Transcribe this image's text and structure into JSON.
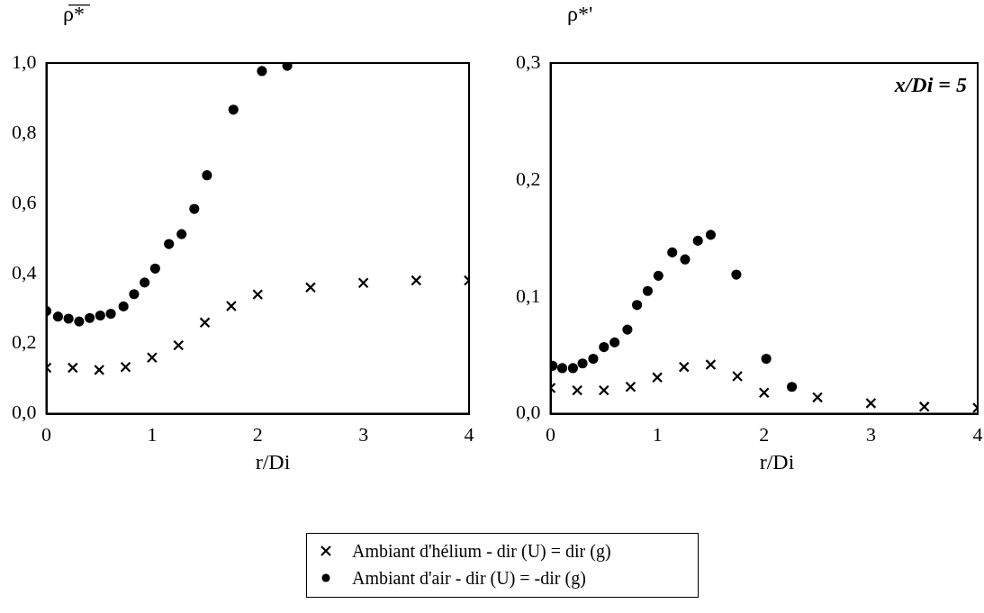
{
  "chart_data": [
    {
      "type": "scatter",
      "ylabel": "ρ̅*̅",
      "xlabel": "r/Di",
      "xlim": [
        0,
        4
      ],
      "xticks": [
        0,
        1,
        2,
        3,
        4
      ],
      "ylim": [
        0,
        1
      ],
      "yticks": [
        {
          "value": 0,
          "label": "0,0"
        },
        {
          "value": 0.2,
          "label": "0,2"
        },
        {
          "value": 0.4,
          "label": "0,4"
        },
        {
          "value": 0.6,
          "label": "0,6"
        },
        {
          "value": 0.8,
          "label": "0,8"
        },
        {
          "value": 1,
          "label": "1,0"
        }
      ],
      "grid": false,
      "legend": "bottom",
      "series": [
        {
          "name": "Ambiant d'hélium - dir (U) = dir (g)",
          "color": "#000000",
          "marker": "cross",
          "x": [
            0,
            0.25,
            0.5,
            0.75,
            1,
            1.25,
            1.5,
            1.75,
            2,
            2.5,
            3,
            3.5,
            4
          ],
          "values": [
            0.131,
            0.131,
            0.125,
            0.133,
            0.16,
            0.195,
            0.26,
            0.307,
            0.34,
            0.36,
            0.373,
            0.38,
            0.38
          ]
        },
        {
          "name": "Ambiant d'air - dir (U) = -dir (g)",
          "color": "#000000",
          "marker": "circle",
          "x": [
            0,
            0.11,
            0.21,
            0.31,
            0.41,
            0.51,
            0.61,
            0.73,
            0.83,
            0.93,
            1.03,
            1.16,
            1.28,
            1.4,
            1.52,
            1.77,
            2.04,
            2.28
          ],
          "values": [
            0.293,
            0.277,
            0.271,
            0.263,
            0.273,
            0.28,
            0.285,
            0.306,
            0.341,
            0.374,
            0.414,
            0.484,
            0.512,
            0.584,
            0.68,
            0.867,
            0.977,
            0.992
          ]
        }
      ]
    },
    {
      "type": "scatter",
      "ylabel": "ρ*'",
      "xlabel": "r/Di",
      "xlim": [
        0,
        4
      ],
      "xticks": [
        0,
        1,
        2,
        3,
        4
      ],
      "ylim": [
        0,
        0.3
      ],
      "yticks": [
        {
          "value": 0,
          "label": "0,0"
        },
        {
          "value": 0.1,
          "label": "0,1"
        },
        {
          "value": 0.2,
          "label": "0,2"
        },
        {
          "value": 0.3,
          "label": "0,3"
        }
      ],
      "grid": false,
      "legend": false,
      "annotations": [
        "x/Di = 5"
      ],
      "series": [
        {
          "color": "#000000",
          "marker": "cross",
          "x": [
            0,
            0.25,
            0.5,
            0.75,
            1,
            1.25,
            1.5,
            1.75,
            2,
            2.5,
            3,
            3.5,
            4
          ],
          "values": [
            0.022,
            0.02,
            0.02,
            0.023,
            0.031,
            0.04,
            0.042,
            0.032,
            0.018,
            0.014,
            0.009,
            0.006,
            0.005
          ]
        },
        {
          "color": "#000000",
          "marker": "circle",
          "x": [
            0.02,
            0.11,
            0.21,
            0.3,
            0.4,
            0.5,
            0.6,
            0.72,
            0.81,
            0.91,
            1.01,
            1.14,
            1.26,
            1.38,
            1.5,
            1.74,
            2.02,
            2.26
          ],
          "values": [
            0.041,
            0.039,
            0.039,
            0.043,
            0.047,
            0.057,
            0.061,
            0.072,
            0.093,
            0.105,
            0.118,
            0.138,
            0.132,
            0.148,
            0.153,
            0.119,
            0.047,
            0.023
          ]
        }
      ]
    }
  ]
}
